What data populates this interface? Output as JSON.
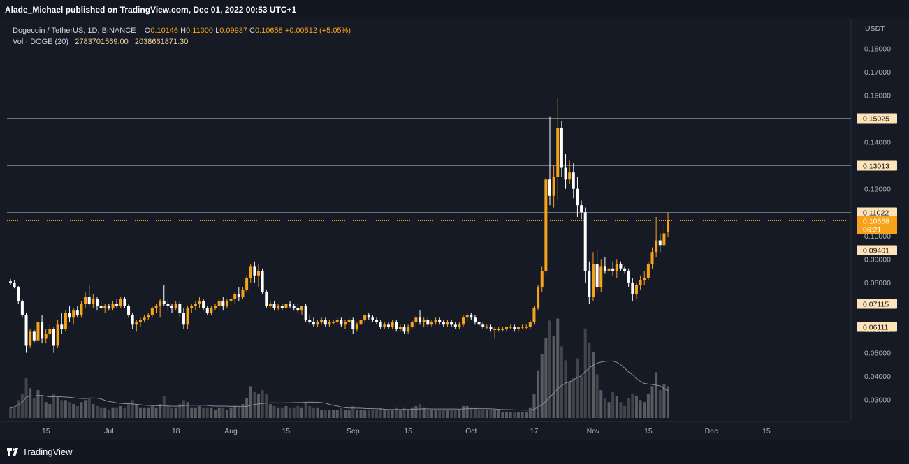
{
  "header": {
    "publisher": "Alade_Michael published on TradingView.com, Dec 01, 2022 00:53 UTC+1"
  },
  "legend": {
    "symbol": "Dogecoin / TetherUS, 1D, BINANCE",
    "o_label": "O",
    "o_value": "0.10146",
    "h_label": "H",
    "h_value": "0.11000",
    "l_label": "L",
    "l_value": "0.09937",
    "c_label": "C",
    "c_value": "0.10658",
    "change": "+0.00512 (+5.05%)",
    "vol_label": "Vol · DOGE (20)",
    "vol_value": "2783701569.00",
    "vol_ma_value": "2038661871.30"
  },
  "footer": {
    "logo_text": "TradingView"
  },
  "colors": {
    "up": "#f7a21b",
    "down": "#ffffff",
    "background": "#161a25",
    "level_label": "#fde3b7"
  },
  "chart_data": {
    "type": "candlestick",
    "symbol": "DOGEUSDT",
    "timeframe": "1D",
    "currency_label": "USDT",
    "y_ticks": [
      "0.18000",
      "0.17000",
      "0.16000",
      "0.15000",
      "0.14000",
      "0.13000",
      "0.12000",
      "0.11000",
      "0.10000",
      "0.09000",
      "0.08000",
      "0.07000",
      "0.06000",
      "0.05000",
      "0.04000",
      "0.03000"
    ],
    "x_ticks": [
      {
        "label": "15",
        "date": "2022-06-15"
      },
      {
        "label": "Jul",
        "date": "2022-07-01"
      },
      {
        "label": "18",
        "date": "2022-07-18"
      },
      {
        "label": "Aug",
        "date": "2022-08-01"
      },
      {
        "label": "15",
        "date": "2022-08-15"
      },
      {
        "label": "Sep",
        "date": "2022-09-01"
      },
      {
        "label": "15",
        "date": "2022-09-15"
      },
      {
        "label": "Oct",
        "date": "2022-10-01"
      },
      {
        "label": "17",
        "date": "2022-10-17"
      },
      {
        "label": "Nov",
        "date": "2022-11-01"
      },
      {
        "label": "15",
        "date": "2022-11-15"
      },
      {
        "label": "Dec",
        "date": "2022-12-01"
      },
      {
        "label": "15",
        "date": "2022-12-15"
      }
    ],
    "levels": [
      {
        "value": 0.15025,
        "label": "0.15025"
      },
      {
        "value": 0.13013,
        "label": "0.13013"
      },
      {
        "value": 0.11022,
        "label": "0.11022"
      },
      {
        "value": 0.09401,
        "label": "0.09401"
      },
      {
        "value": 0.07115,
        "label": "0.07115"
      },
      {
        "value": 0.06111,
        "label": "0.06111"
      }
    ],
    "last_price": {
      "value": 0.10658,
      "label": "0.10658",
      "countdown": "06:21"
    },
    "first_date": "2022-06-06",
    "candles": [
      [
        0.0805,
        0.0815,
        0.079,
        0.08,
        0.5
      ],
      [
        0.08,
        0.081,
        0.0775,
        0.078,
        0.6
      ],
      [
        0.078,
        0.0785,
        0.071,
        0.072,
        0.9
      ],
      [
        0.072,
        0.073,
        0.065,
        0.066,
        1.2
      ],
      [
        0.066,
        0.067,
        0.05,
        0.053,
        2.0
      ],
      [
        0.053,
        0.06,
        0.052,
        0.059,
        1.5
      ],
      [
        0.059,
        0.06,
        0.054,
        0.055,
        1.0
      ],
      [
        0.055,
        0.064,
        0.053,
        0.063,
        1.4
      ],
      [
        0.063,
        0.066,
        0.054,
        0.056,
        1.1
      ],
      [
        0.056,
        0.06,
        0.054,
        0.058,
        0.8
      ],
      [
        0.058,
        0.062,
        0.056,
        0.06,
        0.7
      ],
      [
        0.06,
        0.061,
        0.05,
        0.053,
        1.2
      ],
      [
        0.053,
        0.064,
        0.052,
        0.062,
        1.1
      ],
      [
        0.062,
        0.067,
        0.058,
        0.06,
        0.9
      ],
      [
        0.06,
        0.068,
        0.059,
        0.067,
        0.9
      ],
      [
        0.067,
        0.07,
        0.063,
        0.065,
        0.8
      ],
      [
        0.065,
        0.069,
        0.062,
        0.068,
        0.7
      ],
      [
        0.068,
        0.07,
        0.065,
        0.066,
        0.6
      ],
      [
        0.066,
        0.072,
        0.065,
        0.071,
        0.8
      ],
      [
        0.071,
        0.076,
        0.069,
        0.074,
        0.9
      ],
      [
        0.074,
        0.079,
        0.07,
        0.071,
        1.0
      ],
      [
        0.071,
        0.075,
        0.069,
        0.073,
        0.7
      ],
      [
        0.073,
        0.074,
        0.068,
        0.07,
        0.6
      ],
      [
        0.07,
        0.072,
        0.068,
        0.069,
        0.5
      ],
      [
        0.069,
        0.071,
        0.067,
        0.07,
        0.5
      ],
      [
        0.07,
        0.071,
        0.068,
        0.069,
        0.4
      ],
      [
        0.069,
        0.072,
        0.068,
        0.071,
        0.5
      ],
      [
        0.071,
        0.073,
        0.069,
        0.07,
        0.5
      ],
      [
        0.07,
        0.074,
        0.069,
        0.073,
        0.6
      ],
      [
        0.073,
        0.074,
        0.069,
        0.07,
        0.5
      ],
      [
        0.07,
        0.071,
        0.065,
        0.066,
        0.7
      ],
      [
        0.066,
        0.067,
        0.06,
        0.062,
        0.9
      ],
      [
        0.062,
        0.064,
        0.059,
        0.063,
        0.7
      ],
      [
        0.063,
        0.065,
        0.061,
        0.064,
        0.5
      ],
      [
        0.064,
        0.066,
        0.063,
        0.065,
        0.5
      ],
      [
        0.065,
        0.067,
        0.064,
        0.066,
        0.5
      ],
      [
        0.066,
        0.07,
        0.065,
        0.069,
        0.6
      ],
      [
        0.069,
        0.071,
        0.067,
        0.07,
        0.5
      ],
      [
        0.07,
        0.073,
        0.065,
        0.072,
        0.7
      ],
      [
        0.072,
        0.079,
        0.07,
        0.071,
        1.1
      ],
      [
        0.071,
        0.073,
        0.068,
        0.07,
        0.6
      ],
      [
        0.07,
        0.071,
        0.067,
        0.069,
        0.5
      ],
      [
        0.069,
        0.072,
        0.068,
        0.071,
        0.5
      ],
      [
        0.071,
        0.072,
        0.065,
        0.067,
        0.7
      ],
      [
        0.067,
        0.069,
        0.06,
        0.062,
        0.9
      ],
      [
        0.062,
        0.07,
        0.06,
        0.069,
        0.8
      ],
      [
        0.069,
        0.071,
        0.067,
        0.07,
        0.5
      ],
      [
        0.07,
        0.072,
        0.068,
        0.071,
        0.5
      ],
      [
        0.071,
        0.074,
        0.069,
        0.072,
        0.6
      ],
      [
        0.072,
        0.073,
        0.068,
        0.069,
        0.5
      ],
      [
        0.069,
        0.07,
        0.066,
        0.067,
        0.5
      ],
      [
        0.067,
        0.07,
        0.066,
        0.069,
        0.5
      ],
      [
        0.069,
        0.071,
        0.068,
        0.07,
        0.4
      ],
      [
        0.07,
        0.073,
        0.069,
        0.072,
        0.5
      ],
      [
        0.072,
        0.074,
        0.068,
        0.07,
        0.5
      ],
      [
        0.07,
        0.073,
        0.069,
        0.072,
        0.4
      ],
      [
        0.072,
        0.074,
        0.07,
        0.073,
        0.5
      ],
      [
        0.073,
        0.076,
        0.071,
        0.075,
        0.6
      ],
      [
        0.075,
        0.078,
        0.072,
        0.074,
        0.6
      ],
      [
        0.074,
        0.078,
        0.073,
        0.077,
        0.7
      ],
      [
        0.077,
        0.083,
        0.076,
        0.082,
        1.0
      ],
      [
        0.082,
        0.088,
        0.08,
        0.087,
        1.6
      ],
      [
        0.087,
        0.089,
        0.08,
        0.083,
        1.3
      ],
      [
        0.083,
        0.088,
        0.078,
        0.085,
        1.2
      ],
      [
        0.085,
        0.086,
        0.075,
        0.076,
        1.4
      ],
      [
        0.076,
        0.077,
        0.069,
        0.07,
        1.2
      ],
      [
        0.07,
        0.072,
        0.069,
        0.071,
        0.7
      ],
      [
        0.071,
        0.072,
        0.068,
        0.069,
        0.6
      ],
      [
        0.069,
        0.071,
        0.068,
        0.07,
        0.5
      ],
      [
        0.07,
        0.071,
        0.068,
        0.069,
        0.5
      ],
      [
        0.069,
        0.072,
        0.068,
        0.071,
        0.6
      ],
      [
        0.071,
        0.072,
        0.069,
        0.07,
        0.5
      ],
      [
        0.07,
        0.071,
        0.068,
        0.069,
        0.5
      ],
      [
        0.069,
        0.071,
        0.067,
        0.068,
        0.6
      ],
      [
        0.068,
        0.07,
        0.066,
        0.07,
        0.5
      ],
      [
        0.07,
        0.071,
        0.063,
        0.064,
        0.8
      ],
      [
        0.064,
        0.066,
        0.062,
        0.063,
        0.6
      ],
      [
        0.063,
        0.065,
        0.061,
        0.062,
        0.5
      ],
      [
        0.062,
        0.064,
        0.061,
        0.063,
        0.5
      ],
      [
        0.063,
        0.065,
        0.062,
        0.064,
        0.4
      ],
      [
        0.064,
        0.065,
        0.061,
        0.062,
        0.4
      ],
      [
        0.062,
        0.064,
        0.061,
        0.063,
        0.4
      ],
      [
        0.063,
        0.064,
        0.062,
        0.063,
        0.4
      ],
      [
        0.063,
        0.065,
        0.062,
        0.064,
        0.4
      ],
      [
        0.064,
        0.065,
        0.061,
        0.062,
        0.5
      ],
      [
        0.062,
        0.064,
        0.06,
        0.063,
        0.4
      ],
      [
        0.063,
        0.065,
        0.062,
        0.064,
        0.4
      ],
      [
        0.064,
        0.065,
        0.058,
        0.06,
        0.6
      ],
      [
        0.06,
        0.063,
        0.059,
        0.062,
        0.4
      ],
      [
        0.062,
        0.065,
        0.061,
        0.064,
        0.4
      ],
      [
        0.064,
        0.066,
        0.063,
        0.066,
        0.4
      ],
      [
        0.066,
        0.067,
        0.064,
        0.065,
        0.4
      ],
      [
        0.065,
        0.066,
        0.063,
        0.064,
        0.4
      ],
      [
        0.064,
        0.065,
        0.062,
        0.063,
        0.4
      ],
      [
        0.063,
        0.064,
        0.06,
        0.061,
        0.5
      ],
      [
        0.061,
        0.063,
        0.06,
        0.062,
        0.4
      ],
      [
        0.062,
        0.063,
        0.06,
        0.061,
        0.4
      ],
      [
        0.061,
        0.064,
        0.06,
        0.063,
        0.4
      ],
      [
        0.063,
        0.064,
        0.059,
        0.06,
        0.5
      ],
      [
        0.06,
        0.062,
        0.059,
        0.061,
        0.4
      ],
      [
        0.061,
        0.062,
        0.058,
        0.059,
        0.5
      ],
      [
        0.059,
        0.062,
        0.058,
        0.061,
        0.4
      ],
      [
        0.061,
        0.064,
        0.06,
        0.063,
        0.5
      ],
      [
        0.063,
        0.066,
        0.061,
        0.065,
        0.6
      ],
      [
        0.065,
        0.068,
        0.062,
        0.063,
        0.7
      ],
      [
        0.063,
        0.065,
        0.061,
        0.064,
        0.5
      ],
      [
        0.064,
        0.065,
        0.061,
        0.062,
        0.4
      ],
      [
        0.062,
        0.064,
        0.061,
        0.063,
        0.4
      ],
      [
        0.063,
        0.065,
        0.062,
        0.064,
        0.4
      ],
      [
        0.064,
        0.065,
        0.062,
        0.063,
        0.4
      ],
      [
        0.063,
        0.064,
        0.061,
        0.062,
        0.4
      ],
      [
        0.062,
        0.064,
        0.061,
        0.063,
        0.4
      ],
      [
        0.063,
        0.064,
        0.061,
        0.062,
        0.4
      ],
      [
        0.062,
        0.063,
        0.06,
        0.061,
        0.4
      ],
      [
        0.061,
        0.063,
        0.06,
        0.062,
        0.4
      ],
      [
        0.062,
        0.066,
        0.061,
        0.065,
        0.6
      ],
      [
        0.065,
        0.067,
        0.063,
        0.066,
        0.6
      ],
      [
        0.066,
        0.067,
        0.064,
        0.065,
        0.5
      ],
      [
        0.065,
        0.066,
        0.062,
        0.063,
        0.5
      ],
      [
        0.063,
        0.064,
        0.061,
        0.062,
        0.4
      ],
      [
        0.062,
        0.063,
        0.06,
        0.061,
        0.4
      ],
      [
        0.061,
        0.062,
        0.06,
        0.061,
        0.4
      ],
      [
        0.061,
        0.062,
        0.059,
        0.06,
        0.4
      ],
      [
        0.06,
        0.061,
        0.056,
        0.06,
        0.4
      ],
      [
        0.06,
        0.061,
        0.059,
        0.06,
        0.4
      ],
      [
        0.06,
        0.061,
        0.059,
        0.06,
        0.3
      ],
      [
        0.06,
        0.061,
        0.059,
        0.061,
        0.3
      ],
      [
        0.061,
        0.062,
        0.06,
        0.061,
        0.3
      ],
      [
        0.061,
        0.062,
        0.059,
        0.06,
        0.3
      ],
      [
        0.06,
        0.061,
        0.059,
        0.061,
        0.3
      ],
      [
        0.061,
        0.062,
        0.06,
        0.061,
        0.3
      ],
      [
        0.061,
        0.062,
        0.06,
        0.061,
        0.3
      ],
      [
        0.061,
        0.064,
        0.06,
        0.063,
        0.5
      ],
      [
        0.063,
        0.07,
        0.062,
        0.069,
        1.2
      ],
      [
        0.069,
        0.079,
        0.068,
        0.078,
        2.4
      ],
      [
        0.078,
        0.087,
        0.076,
        0.085,
        3.2
      ],
      [
        0.085,
        0.125,
        0.084,
        0.124,
        4.0
      ],
      [
        0.124,
        0.151,
        0.113,
        0.117,
        4.9
      ],
      [
        0.117,
        0.13,
        0.112,
        0.125,
        4.1
      ],
      [
        0.125,
        0.159,
        0.115,
        0.146,
        5.0
      ],
      [
        0.146,
        0.149,
        0.125,
        0.129,
        3.6
      ],
      [
        0.129,
        0.135,
        0.12,
        0.124,
        2.9
      ],
      [
        0.124,
        0.132,
        0.122,
        0.127,
        1.8
      ],
      [
        0.127,
        0.131,
        0.116,
        0.12,
        2.0
      ],
      [
        0.12,
        0.125,
        0.108,
        0.113,
        3.0
      ],
      [
        0.113,
        0.115,
        0.107,
        0.11,
        2.1
      ],
      [
        0.11,
        0.112,
        0.08,
        0.085,
        4.5
      ],
      [
        0.085,
        0.089,
        0.071,
        0.074,
        3.8
      ],
      [
        0.074,
        0.093,
        0.072,
        0.088,
        3.3
      ],
      [
        0.088,
        0.094,
        0.076,
        0.078,
        2.2
      ],
      [
        0.078,
        0.09,
        0.076,
        0.087,
        1.4
      ],
      [
        0.087,
        0.091,
        0.084,
        0.085,
        1.0
      ],
      [
        0.085,
        0.088,
        0.084,
        0.086,
        0.8
      ],
      [
        0.086,
        0.089,
        0.083,
        0.085,
        1.3
      ],
      [
        0.085,
        0.09,
        0.082,
        0.088,
        1.1
      ],
      [
        0.088,
        0.089,
        0.085,
        0.086,
        0.8
      ],
      [
        0.086,
        0.087,
        0.084,
        0.085,
        0.6
      ],
      [
        0.085,
        0.086,
        0.078,
        0.08,
        1.0
      ],
      [
        0.08,
        0.082,
        0.072,
        0.075,
        1.2
      ],
      [
        0.075,
        0.08,
        0.073,
        0.079,
        1.1
      ],
      [
        0.079,
        0.083,
        0.077,
        0.081,
        0.9
      ],
      [
        0.081,
        0.085,
        0.079,
        0.082,
        0.8
      ],
      [
        0.082,
        0.089,
        0.081,
        0.088,
        1.2
      ],
      [
        0.088,
        0.095,
        0.086,
        0.093,
        1.6
      ],
      [
        0.093,
        0.108,
        0.091,
        0.098,
        2.3
      ],
      [
        0.098,
        0.101,
        0.093,
        0.096,
        1.4
      ],
      [
        0.096,
        0.105,
        0.095,
        0.101,
        1.7
      ],
      [
        0.1015,
        0.11,
        0.0994,
        0.1066,
        1.6
      ]
    ]
  }
}
